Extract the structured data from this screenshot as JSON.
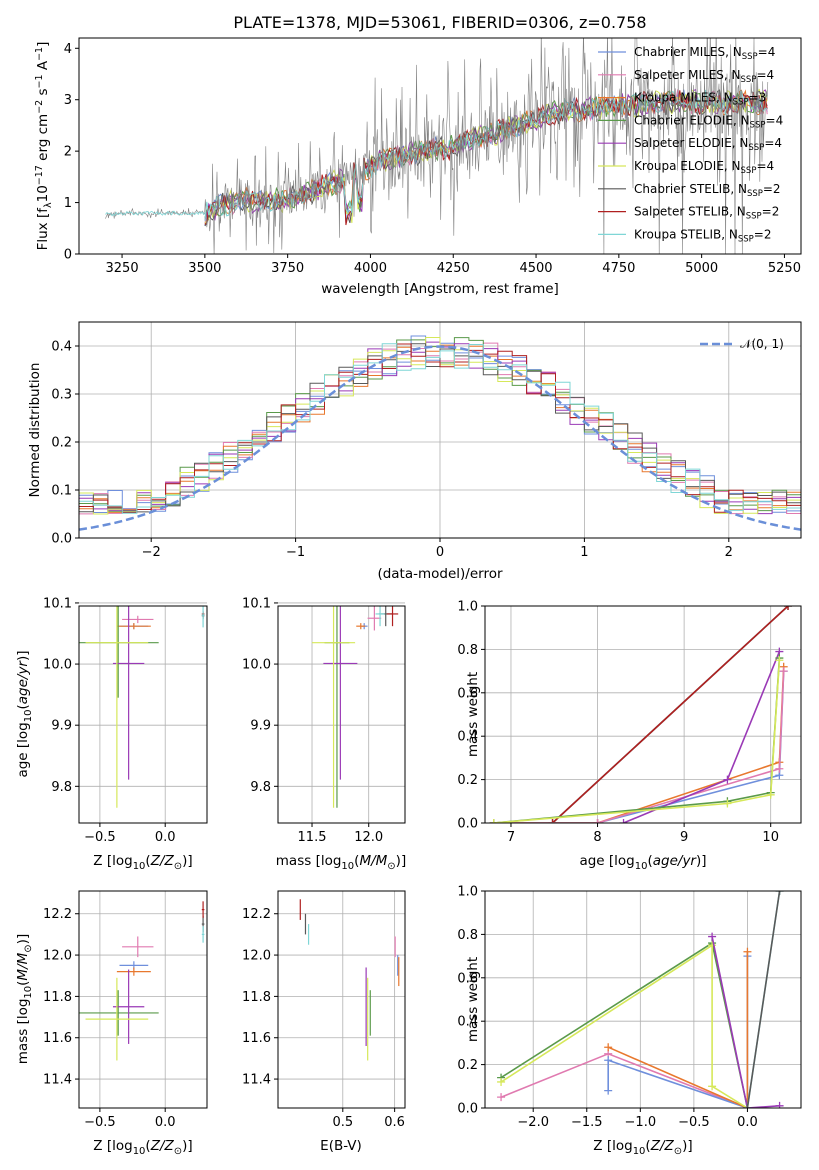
{
  "title": "PLATE=1378, MJD=53061, FIBERID=0306, z=0.758",
  "colors": {
    "Chabrier MILES": "#6f8fdc",
    "Salpeter MILES": "#e07ab0",
    "Kroupa MILES": "#e8782e",
    "Chabrier ELODIE": "#5a9a4a",
    "Salpeter ELODIE": "#9a3ab6",
    "Kroupa ELODIE": "#d6e85a",
    "Chabrier STELIB": "#595959",
    "Salpeter STELIB": "#b02020",
    "Kroupa STELIB": "#7fd6d6",
    "data": "#808080",
    "normal": "#6a8fd8"
  },
  "chart_data": [
    {
      "id": "spectrum",
      "type": "line",
      "xlabel": "wavelength [Angstrom, rest frame]",
      "ylabel": "Flux [f_λ 10^-17 erg cm^-2 s^-1 A^-1]",
      "xlim": [
        3120,
        5300
      ],
      "ylim": [
        0,
        4.2
      ],
      "xticks": [
        3250,
        3500,
        3750,
        4000,
        4250,
        4500,
        4750,
        5000,
        5250
      ],
      "yticks": [
        0,
        1,
        2,
        3,
        4
      ],
      "legend": [
        {
          "name": "Chabrier MILES",
          "nssp": "4"
        },
        {
          "name": "Salpeter MILES",
          "nssp": "4"
        },
        {
          "name": "Kroupa MILES",
          "nssp": "3"
        },
        {
          "name": "Chabrier ELODIE",
          "nssp": "4"
        },
        {
          "name": "Salpeter ELODIE",
          "nssp": "4"
        },
        {
          "name": "Kroupa ELODIE",
          "nssp": "4"
        },
        {
          "name": "Chabrier STELIB",
          "nssp": "2"
        },
        {
          "name": "Salpeter STELIB",
          "nssp": "2"
        },
        {
          "name": "Kroupa STELIB",
          "nssp": "2"
        }
      ],
      "legend_loc": "upper right",
      "continuum_model": [
        [
          3200,
          0.78
        ],
        [
          3500,
          0.8
        ],
        [
          3600,
          1.05
        ],
        [
          3750,
          1.05
        ],
        [
          3900,
          1.4
        ],
        [
          3960,
          1.6
        ],
        [
          4050,
          1.85
        ],
        [
          4250,
          2.1
        ],
        [
          4400,
          2.4
        ],
        [
          4550,
          2.75
        ],
        [
          4700,
          2.85
        ],
        [
          4900,
          2.95
        ],
        [
          5200,
          2.95
        ]
      ]
    },
    {
      "id": "residuals",
      "type": "line",
      "xlabel": "(data-model)/error",
      "ylabel": "Normed distribution",
      "xlim": [
        -2.5,
        2.5
      ],
      "ylim": [
        0,
        0.45
      ],
      "xticks": [
        -2,
        -1,
        0,
        1,
        2
      ],
      "yticks": [
        0.0,
        0.1,
        0.2,
        0.3,
        0.4
      ],
      "legend": [
        "𝒩(0, 1)"
      ],
      "grid": true
    },
    {
      "id": "age_vs_Z",
      "type": "errorbar",
      "xlabel": "Z [log10(Z/Z⊙)]",
      "ylabel": "age [log10(age/yr)]",
      "xlim": [
        -0.66,
        0.32
      ],
      "ylim": [
        9.74,
        10.095
      ],
      "xticks": [
        -0.5,
        0.0
      ],
      "yticks": [
        9.8,
        9.9,
        10.0,
        10.1
      ],
      "grid": true,
      "points": [
        {
          "model": "Chabrier MILES",
          "x": -0.24,
          "xerr": 0.11,
          "y": 10.062,
          "yerr": 0.005
        },
        {
          "model": "Salpeter MILES",
          "x": -0.21,
          "xerr": 0.12,
          "y": 10.073,
          "yerr": 0.006
        },
        {
          "model": "Kroupa MILES",
          "x": -0.24,
          "xerr": 0.13,
          "y": 10.062,
          "yerr": 0.005
        },
        {
          "model": "Chabrier ELODIE",
          "x": -0.36,
          "xerr": 0.31,
          "y": 10.035,
          "yerr": 0.09
        },
        {
          "model": "Salpeter ELODIE",
          "x": -0.28,
          "xerr": 0.12,
          "y": 10.001,
          "yerr": 0.19
        },
        {
          "model": "Kroupa ELODIE",
          "x": -0.37,
          "xerr": 0.24,
          "y": 10.035,
          "yerr": 0.27
        },
        {
          "model": "Chabrier STELIB",
          "x": 0.29,
          "xerr": 0.01,
          "y": 10.079,
          "yerr": 0.005
        },
        {
          "model": "Salpeter STELIB",
          "x": 0.29,
          "xerr": 0.01,
          "y": 10.082,
          "yerr": 0.004
        },
        {
          "model": "Kroupa STELIB",
          "x": 0.29,
          "xerr": 0.01,
          "y": 10.08,
          "yerr": 0.02
        }
      ]
    },
    {
      "id": "age_vs_mass",
      "type": "errorbar",
      "xlabel": "mass [log10(M/M⊙)]",
      "ylabel": "",
      "xlim": [
        11.2,
        12.32
      ],
      "ylim": [
        9.74,
        10.095
      ],
      "xticks": [
        11.5,
        12.0
      ],
      "yticks": [
        9.8,
        9.9,
        10.0,
        10.1
      ],
      "grid": true,
      "points": [
        {
          "model": "Chabrier MILES",
          "x": 11.96,
          "xerr": 0.03,
          "y": 10.062,
          "yerr": 0.005
        },
        {
          "model": "Salpeter MILES",
          "x": 12.05,
          "xerr": 0.06,
          "y": 10.075,
          "yerr": 0.02
        },
        {
          "model": "Kroupa MILES",
          "x": 11.93,
          "xerr": 0.04,
          "y": 10.062,
          "yerr": 0.005
        },
        {
          "model": "Chabrier ELODIE",
          "x": 11.72,
          "xerr": 0.11,
          "y": 10.035,
          "yerr": 0.27
        },
        {
          "model": "Salpeter ELODIE",
          "x": 11.75,
          "xerr": 0.15,
          "y": 10.001,
          "yerr": 0.19
        },
        {
          "model": "Kroupa ELODIE",
          "x": 11.69,
          "xerr": 0.19,
          "y": 10.035,
          "yerr": 0.27
        },
        {
          "model": "Chabrier STELIB",
          "x": 12.15,
          "xerr": 0.06,
          "y": 10.082,
          "yerr": 0.02
        },
        {
          "model": "Salpeter STELIB",
          "x": 12.21,
          "xerr": 0.05,
          "y": 10.082,
          "yerr": 0.02
        },
        {
          "model": "Kroupa STELIB",
          "x": 12.1,
          "xerr": 0.04,
          "y": 10.082,
          "yerr": 0.02
        }
      ]
    },
    {
      "id": "mass_weight_vs_age",
      "type": "line",
      "xlabel": "age [log10(age/yr)]",
      "ylabel": "mass weight",
      "xlim": [
        6.7,
        10.35
      ],
      "ylim": [
        0,
        1.0
      ],
      "xticks": [
        7,
        8,
        9,
        10
      ],
      "yticks": [
        0.0,
        0.2,
        0.4,
        0.6,
        0.8,
        1.0
      ],
      "grid": true,
      "series": [
        {
          "model": "Kroupa STELIB",
          "x": [
            7.48,
            10.2
          ],
          "y": [
            0.0,
            1.0
          ]
        },
        {
          "model": "Chabrier STELIB",
          "x": [
            7.48,
            10.2
          ],
          "y": [
            0.0,
            1.0
          ]
        },
        {
          "model": "Salpeter STELIB",
          "x": [
            7.48,
            10.2
          ],
          "y": [
            0.0,
            1.0
          ]
        },
        {
          "model": "Chabrier MILES",
          "x": [
            6.8,
            8.0,
            10.1,
            10.15
          ],
          "y": [
            0.0,
            0.0,
            0.22,
            0.7
          ]
        },
        {
          "model": "Kroupa MILES",
          "x": [
            6.8,
            8.0,
            10.1,
            10.15
          ],
          "y": [
            0.0,
            0.0,
            0.28,
            0.72
          ]
        },
        {
          "model": "Salpeter MILES",
          "x": [
            6.8,
            8.0,
            10.1,
            10.15
          ],
          "y": [
            0.0,
            0.0,
            0.25,
            0.7
          ]
        },
        {
          "model": "Salpeter ELODIE",
          "x": [
            8.3,
            9.5,
            10.1
          ],
          "y": [
            0.0,
            0.2,
            0.79
          ]
        },
        {
          "model": "Chabrier ELODIE",
          "x": [
            6.8,
            9.5,
            10.0,
            10.1
          ],
          "y": [
            0.0,
            0.1,
            0.14,
            0.76
          ]
        },
        {
          "model": "Kroupa ELODIE",
          "x": [
            6.8,
            9.5,
            10.0,
            10.1
          ],
          "y": [
            0.0,
            0.09,
            0.13,
            0.75
          ]
        }
      ]
    },
    {
      "id": "mass_vs_Z",
      "type": "errorbar",
      "xlabel": "Z [log10(Z/Z⊙)]",
      "ylabel": "mass [log10(M/M⊙)]",
      "xlim": [
        -0.66,
        0.32
      ],
      "ylim": [
        11.26,
        12.31
      ],
      "xticks": [
        -0.5,
        0.0
      ],
      "yticks": [
        11.4,
        11.6,
        11.8,
        12.0,
        12.2
      ],
      "grid": true,
      "points": [
        {
          "model": "Chabrier MILES",
          "x": -0.24,
          "xerr": 0.11,
          "y": 11.95,
          "yerr": 0.02
        },
        {
          "model": "Salpeter MILES",
          "x": -0.21,
          "xerr": 0.12,
          "y": 12.04,
          "yerr": 0.05
        },
        {
          "model": "Kroupa MILES",
          "x": -0.24,
          "xerr": 0.13,
          "y": 11.92,
          "yerr": 0.02
        },
        {
          "model": "Chabrier ELODIE",
          "x": -0.36,
          "xerr": 0.31,
          "y": 11.72,
          "yerr": 0.11
        },
        {
          "model": "Salpeter ELODIE",
          "x": -0.28,
          "xerr": 0.12,
          "y": 11.75,
          "yerr": 0.18
        },
        {
          "model": "Kroupa ELODIE",
          "x": -0.37,
          "xerr": 0.24,
          "y": 11.69,
          "yerr": 0.2
        },
        {
          "model": "Chabrier STELIB",
          "x": 0.29,
          "xerr": 0.01,
          "y": 12.15,
          "yerr": 0.04
        },
        {
          "model": "Salpeter STELIB",
          "x": 0.29,
          "xerr": 0.01,
          "y": 12.22,
          "yerr": 0.04
        },
        {
          "model": "Kroupa STELIB",
          "x": 0.29,
          "xerr": 0.01,
          "y": 12.1,
          "yerr": 0.04
        }
      ]
    },
    {
      "id": "mass_vs_ebv",
      "type": "errorbar",
      "xlabel": "E(B-V)",
      "ylabel": "",
      "xlim": [
        0.375,
        0.62
      ],
      "ylim": [
        11.26,
        12.31
      ],
      "xticks": [
        0.5,
        0.6
      ],
      "yticks": [
        11.4,
        11.6,
        11.8,
        12.0,
        12.2
      ],
      "grid": true,
      "points": [
        {
          "model": "Chabrier MILES",
          "x": 0.606,
          "xerr": 0.0,
          "y": 11.95,
          "yerr": 0.05
        },
        {
          "model": "Salpeter MILES",
          "x": 0.601,
          "xerr": 0.0,
          "y": 12.04,
          "yerr": 0.05
        },
        {
          "model": "Kroupa MILES",
          "x": 0.608,
          "xerr": 0.0,
          "y": 11.92,
          "yerr": 0.07
        },
        {
          "model": "Chabrier ELODIE",
          "x": 0.553,
          "xerr": 0.0,
          "y": 11.72,
          "yerr": 0.11
        },
        {
          "model": "Salpeter ELODIE",
          "x": 0.545,
          "xerr": 0.0,
          "y": 11.75,
          "yerr": 0.19
        },
        {
          "model": "Kroupa ELODIE",
          "x": 0.548,
          "xerr": 0.0,
          "y": 11.69,
          "yerr": 0.2
        },
        {
          "model": "Chabrier STELIB",
          "x": 0.428,
          "xerr": 0.0,
          "y": 12.15,
          "yerr": 0.05
        },
        {
          "model": "Salpeter STELIB",
          "x": 0.418,
          "xerr": 0.0,
          "y": 12.22,
          "yerr": 0.05
        },
        {
          "model": "Kroupa STELIB",
          "x": 0.434,
          "xerr": 0.0,
          "y": 12.1,
          "yerr": 0.05
        }
      ]
    },
    {
      "id": "mass_weight_vs_Z",
      "type": "line",
      "xlabel": "Z [log10(Z/Z⊙)]",
      "ylabel": "mass weight",
      "xlim": [
        -2.45,
        0.5
      ],
      "ylim": [
        0,
        1.0
      ],
      "xticks": [
        -2.0,
        -1.5,
        -1.0,
        -0.5,
        0.0
      ],
      "yticks": [
        0.0,
        0.2,
        0.4,
        0.6,
        0.8,
        1.0
      ],
      "grid": true,
      "series": [
        {
          "model": "Salpeter MILES",
          "x": [
            -2.3,
            -1.3,
            0.0
          ],
          "y": [
            0.05,
            0.25,
            0.0
          ]
        },
        {
          "model": "Chabrier MILES",
          "x": [
            -1.3,
            -1.3,
            0.0,
            0.0
          ],
          "y": [
            0.08,
            0.22,
            0.0,
            0.7
          ]
        },
        {
          "model": "Kroupa MILES",
          "x": [
            -1.3,
            0.0,
            0.0
          ],
          "y": [
            0.28,
            0.0,
            0.72
          ]
        },
        {
          "model": "Chabrier ELODIE",
          "x": [
            -2.3,
            -0.33,
            0.0
          ],
          "y": [
            0.14,
            0.76,
            0.0
          ]
        },
        {
          "model": "Kroupa ELODIE",
          "x": [
            -2.3,
            -0.33,
            -0.33,
            0.0
          ],
          "y": [
            0.12,
            0.75,
            0.1,
            0.0
          ]
        },
        {
          "model": "Salpeter ELODIE",
          "x": [
            -0.33,
            0.0,
            0.3
          ],
          "y": [
            0.79,
            0.0,
            0.01
          ]
        },
        {
          "model": "Kroupa STELIB",
          "x": [
            0.0,
            0.3
          ],
          "y": [
            0.0,
            1.0
          ]
        },
        {
          "model": "Chabrier STELIB",
          "x": [
            0.0,
            0.3
          ],
          "y": [
            0.0,
            1.0
          ]
        }
      ]
    }
  ]
}
